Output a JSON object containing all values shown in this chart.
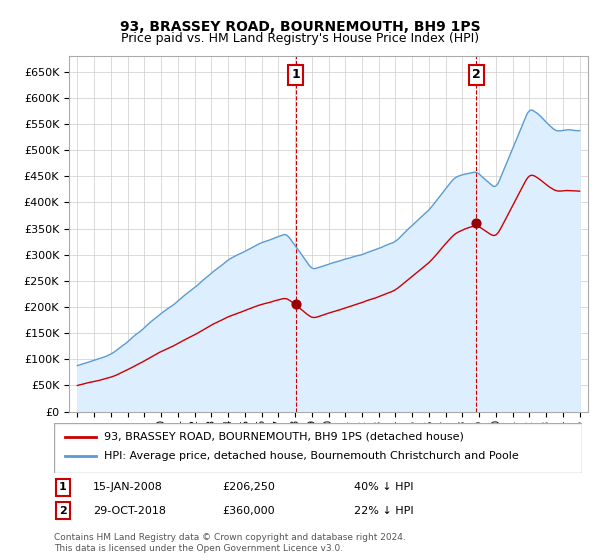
{
  "title": "93, BRASSEY ROAD, BOURNEMOUTH, BH9 1PS",
  "subtitle": "Price paid vs. HM Land Registry's House Price Index (HPI)",
  "legend_line1": "93, BRASSEY ROAD, BOURNEMOUTH, BH9 1PS (detached house)",
  "legend_line2": "HPI: Average price, detached house, Bournemouth Christchurch and Poole",
  "annotation1_label": "1",
  "annotation1_date": "15-JAN-2008",
  "annotation1_price": "£206,250",
  "annotation1_hpi": "40% ↓ HPI",
  "annotation1_year": 2008.04,
  "annotation1_value": 206250,
  "annotation2_label": "2",
  "annotation2_date": "29-OCT-2018",
  "annotation2_price": "£360,000",
  "annotation2_hpi": "22% ↓ HPI",
  "annotation2_year": 2018.83,
  "annotation2_value": 360000,
  "footer": "Contains HM Land Registry data © Crown copyright and database right 2024.\nThis data is licensed under the Open Government Licence v3.0.",
  "hpi_color": "#5b9bd5",
  "hpi_fill_color": "#ddeeff",
  "sale_color": "#cc0000",
  "vline_color": "#cc0000",
  "dot_color": "#990000",
  "background_color": "#ffffff",
  "grid_color": "#cccccc",
  "ylim": [
    0,
    680000
  ],
  "xlim_start": 1994.5,
  "xlim_end": 2025.5
}
